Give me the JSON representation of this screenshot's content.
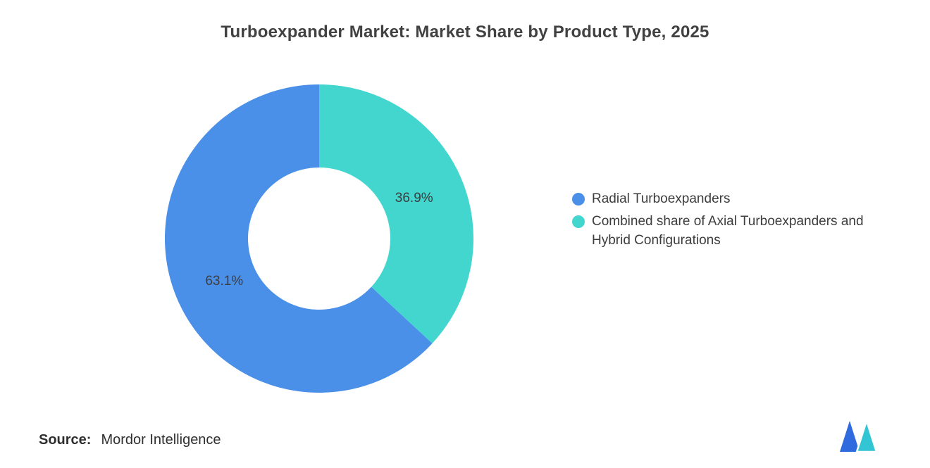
{
  "chart_data": {
    "type": "pie",
    "variant": "donut",
    "title": "Turboexpander Market: Market Share by Product Type, 2025",
    "series": [
      {
        "name": "Radial Turboexpanders",
        "value": 63.1,
        "label": "63.1%",
        "color": "#4A8FE8"
      },
      {
        "name": "Combined share of Axial Turboexpanders and Hybrid Configurations",
        "value": 36.9,
        "label": "36.9%",
        "color": "#43D6CF"
      }
    ],
    "start_angle": "12 o'clock",
    "legend_position": "right",
    "donut_hole_ratio": 0.46,
    "data_labels": "percent inside slices"
  },
  "legend": {
    "items": [
      {
        "label": "Radial Turboexpanders",
        "color": "#4A8FE8"
      },
      {
        "label": "Combined share of Axial Turboexpanders and Hybrid Configurations",
        "color": "#43D6CF"
      }
    ]
  },
  "source": {
    "prefix": "Source:",
    "name": "Mordor Intelligence"
  },
  "logo": {
    "name": "mordor-intelligence-logo",
    "blue": "#2F6BDF",
    "teal": "#33C5D4"
  }
}
